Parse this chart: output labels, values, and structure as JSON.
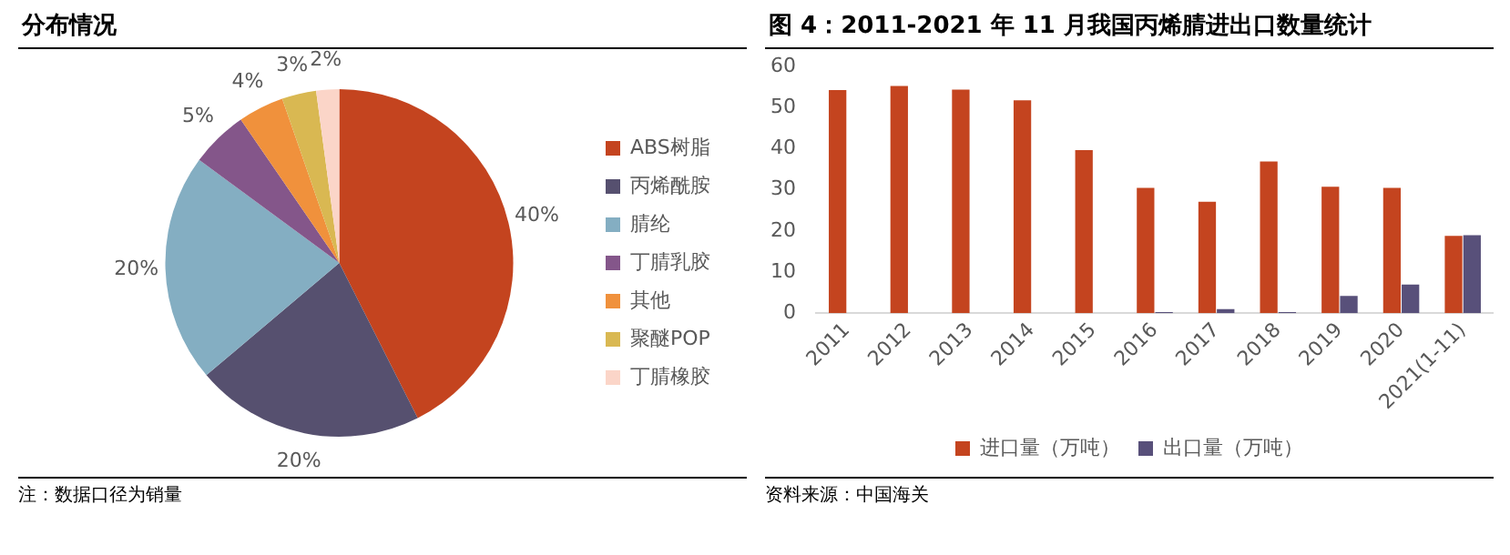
{
  "chart_data": [
    {
      "type": "pie",
      "title": "分布情况",
      "categories": [
        "ABS树脂",
        "丙烯酰胺",
        "腈纶",
        "丁腈乳胶",
        "其他",
        "聚醚POP",
        "丁腈橡胶"
      ],
      "values": [
        40,
        20,
        20,
        5,
        4,
        3,
        2
      ],
      "colors": [
        "#c4441f",
        "#56506f",
        "#84aec2",
        "#84568a",
        "#f0913c",
        "#d9b852",
        "#fbd5c8"
      ],
      "value_labels": [
        "40%",
        "20%",
        "20%",
        "5%",
        "4%",
        "3%",
        "2%"
      ],
      "legend": "right",
      "annotations": [
        "注：数据口径为销量"
      ]
    },
    {
      "type": "bar",
      "title": "图 4：2011-2021 年 11 月我国丙烯腈进出口数量统计",
      "categories": [
        "2011",
        "2012",
        "2013",
        "2014",
        "2015",
        "2016",
        "2017",
        "2018",
        "2019",
        "2020",
        "2021(1-11)"
      ],
      "series": [
        {
          "name": "进口量（万吨）",
          "color": "#c4441f",
          "values": [
            54.3,
            55.3,
            54.4,
            51.8,
            39.7,
            30.5,
            27.1,
            36.9,
            30.8,
            30.5,
            18.8
          ]
        },
        {
          "name": "出口量（万吨）",
          "color": "#58507a",
          "values": [
            0,
            0,
            0,
            0,
            0,
            0.3,
            1,
            0.3,
            4.2,
            7,
            19
          ]
        }
      ],
      "ylim": [
        0,
        60
      ],
      "yticks": [
        0,
        10,
        20,
        30,
        40,
        50,
        60
      ],
      "grid": false,
      "legend": "bottom",
      "annotations": [
        "资料来源：中国海关"
      ]
    }
  ]
}
